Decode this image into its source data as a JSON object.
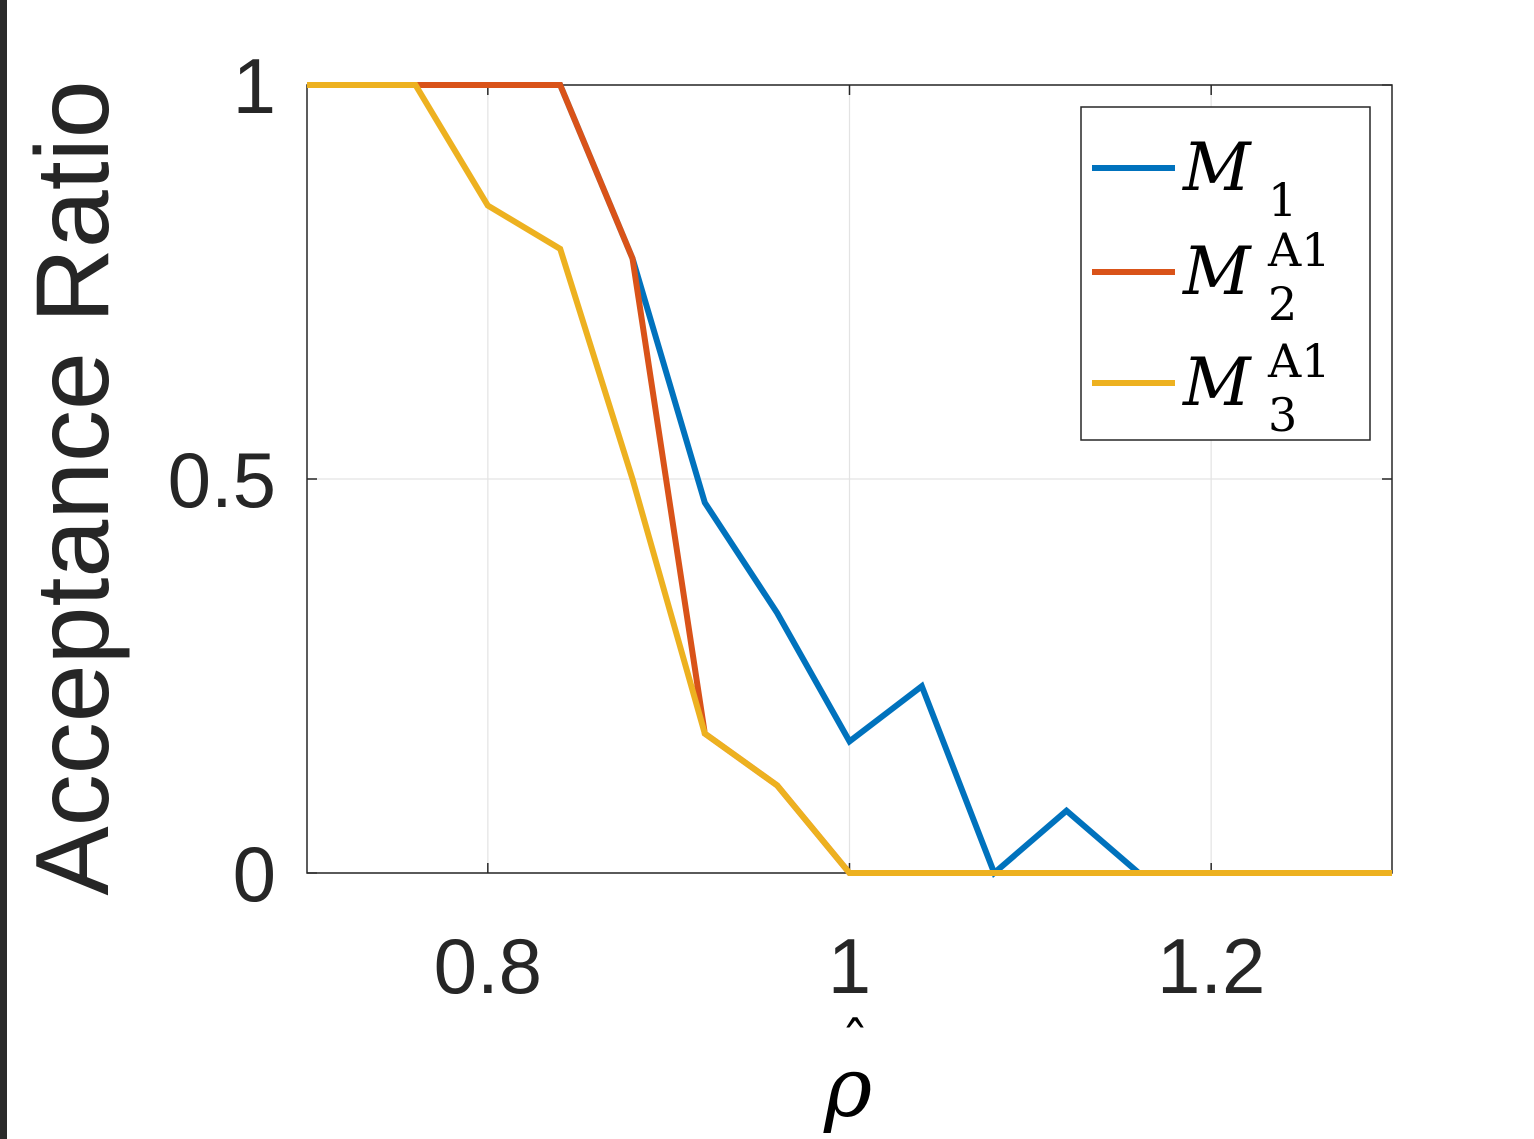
{
  "chart_data": {
    "type": "line",
    "xlabel": "ρ̂",
    "ylabel": "Acceptance Ratio",
    "xlim": [
      0.7,
      1.3
    ],
    "ylim": [
      0,
      1
    ],
    "xticks": [
      0.8,
      1.0,
      1.2
    ],
    "xtick_labels": [
      "0.8",
      "1",
      "1.2"
    ],
    "yticks": [
      0,
      0.5,
      1
    ],
    "ytick_labels": [
      "0",
      "0.5",
      "1"
    ],
    "grid": true,
    "legend_position": "top-right",
    "x": [
      0.7,
      0.76,
      0.8,
      0.84,
      0.88,
      0.92,
      0.96,
      1.0,
      1.04,
      1.08,
      1.12,
      1.16,
      1.2,
      1.24,
      1.28,
      1.3
    ],
    "series": [
      {
        "name": "M_1",
        "legend_main": "M",
        "legend_sub": "1",
        "legend_sup": "",
        "color": "#0072BD",
        "values": [
          1,
          1,
          1,
          1,
          0.78,
          0.47,
          0.33,
          0.167,
          0.237,
          0,
          0.079,
          0,
          0,
          0,
          0,
          0
        ]
      },
      {
        "name": "M_2^A1",
        "legend_main": "M",
        "legend_sub": "2",
        "legend_sup": "A1",
        "color": "#D95319",
        "values": [
          1,
          1,
          1,
          1,
          0.78,
          0.177,
          0.111,
          0,
          0,
          0,
          0,
          0,
          0,
          0,
          0,
          0
        ]
      },
      {
        "name": "M_3^A1",
        "legend_main": "M",
        "legend_sub": "3",
        "legend_sup": "A1",
        "color": "#EDB120",
        "values": [
          1,
          1,
          0.847,
          0.792,
          0.5,
          0.177,
          0.111,
          0,
          0,
          0,
          0,
          0,
          0,
          0,
          0,
          0
        ]
      }
    ]
  }
}
